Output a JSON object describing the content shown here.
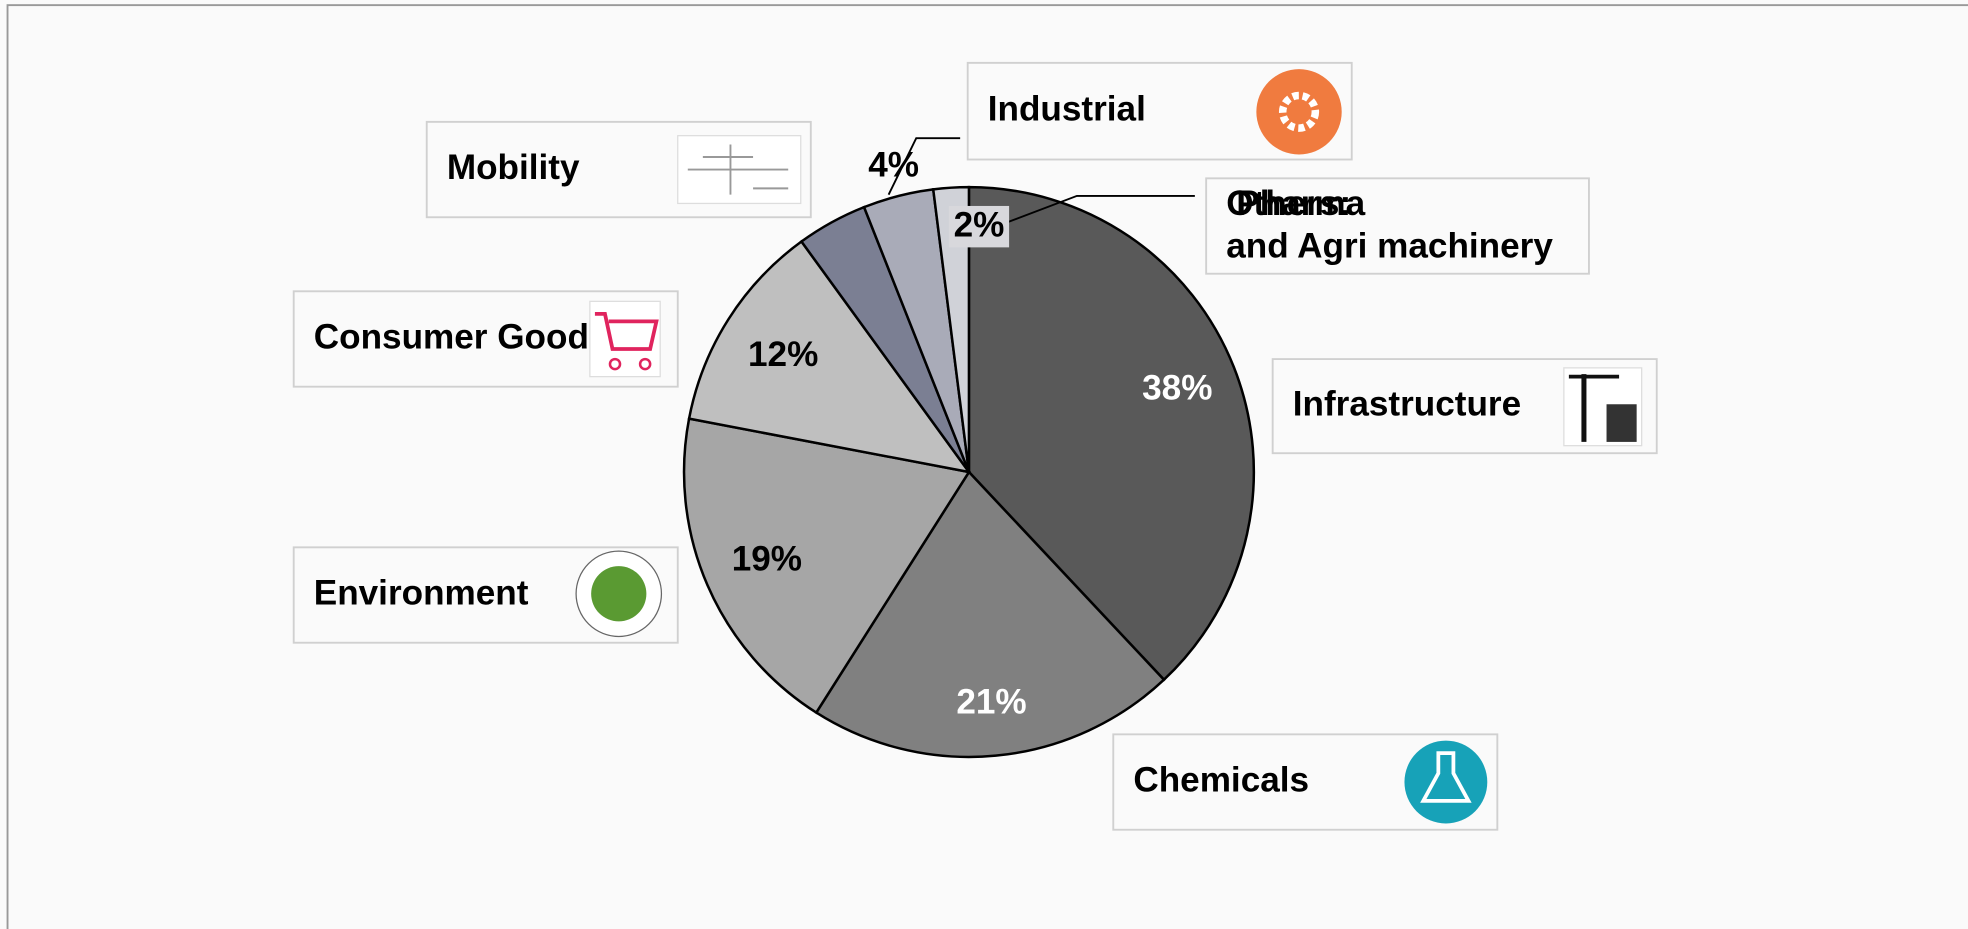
{
  "chart_data": {
    "type": "pie",
    "categories": [
      "Infrastructure",
      "Chemicals",
      "Environment",
      "Consumer Goods",
      "Mobility",
      "Industrial",
      "Others:"
    ],
    "annotation": "Pharma and Agri machinery",
    "values": [
      38,
      21,
      19,
      12,
      4,
      4,
      2
    ],
    "value_labels": [
      "38%",
      "21%",
      "19%",
      "12%",
      null,
      "4%",
      "2%"
    ],
    "colors": [
      "#595959",
      "#808080",
      "#a6a6a6",
      "#bfbfbf",
      "#7b7f93",
      "#a9abb8",
      "#d0d2d8"
    ]
  }
}
